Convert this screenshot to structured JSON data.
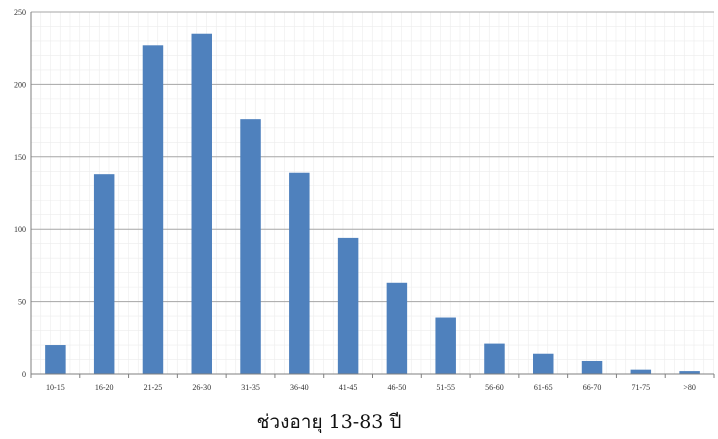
{
  "chart_data": {
    "type": "bar",
    "title": "",
    "xlabel": "ช่วงอายุ 13-83 ปี",
    "ylabel": "",
    "categories": [
      "10-15",
      "16-20",
      "21-25",
      "26-30",
      "31-35",
      "36-40",
      "41-45",
      "46-50",
      "51-55",
      "56-60",
      "61-65",
      "66-70",
      "71-75",
      ">80"
    ],
    "values": [
      20,
      138,
      227,
      235,
      176,
      139,
      94,
      63,
      39,
      21,
      14,
      9,
      3,
      2
    ],
    "ylim": [
      0,
      250
    ],
    "yticks": [
      0,
      50,
      100,
      150,
      200,
      250
    ],
    "grid": true,
    "legend": "none",
    "colors": {
      "bar": "#4f81bd",
      "major_grid": "#a6a6a6",
      "minor_grid": "#ececec"
    }
  }
}
